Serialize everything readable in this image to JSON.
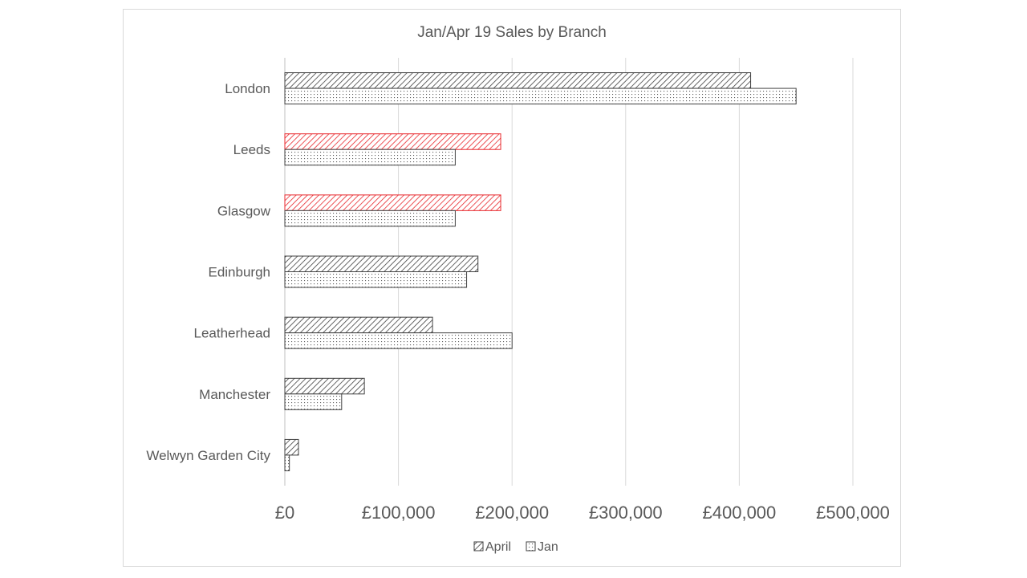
{
  "chart_data": {
    "type": "bar",
    "orientation": "horizontal",
    "title": "Jan/Apr 19 Sales by Branch",
    "categories": [
      "London",
      "Leeds",
      "Glasgow",
      "Edinburgh",
      "Leatherhead",
      "Manchester",
      "Welwyn Garden City"
    ],
    "series": [
      {
        "name": "April",
        "values": [
          410000,
          190000,
          190000,
          170000,
          130000,
          70000,
          12000
        ],
        "pattern": "diagonal-hatch",
        "color": "#404040",
        "highlight_color": "#e8262b",
        "highlight_categories": [
          "Leeds",
          "Glasgow"
        ]
      },
      {
        "name": "Jan",
        "values": [
          450000,
          150000,
          150000,
          160000,
          200000,
          50000,
          4000
        ],
        "pattern": "dots",
        "color": "#404040"
      }
    ],
    "xlim": [
      0,
      500000
    ],
    "xticks": [
      0,
      100000,
      200000,
      300000,
      400000,
      500000
    ],
    "xtick_labels": [
      "£0",
      "£100,000",
      "£200,000",
      "£300,000",
      "£400,000",
      "£500,000"
    ],
    "grid": true,
    "legend": "bottom"
  }
}
